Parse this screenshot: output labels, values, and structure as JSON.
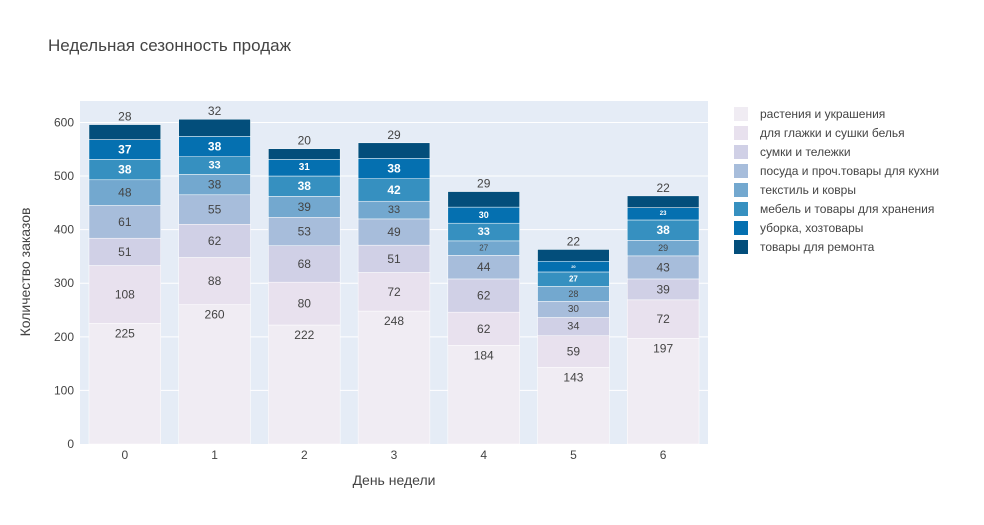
{
  "chart_data": {
    "type": "bar",
    "stacked": true,
    "title": "Недельная сезонность продаж",
    "xlabel": "День недели",
    "ylabel": "Количество заказов",
    "categories": [
      "0",
      "1",
      "2",
      "3",
      "4",
      "5",
      "6"
    ],
    "yticks": [
      "0",
      "100",
      "200",
      "300",
      "400",
      "500",
      "600"
    ],
    "ylim": [
      0,
      640
    ],
    "legend_position": "right",
    "series": [
      {
        "name": "растения и украшения",
        "color": "#f0ecf3",
        "values": [
          225,
          260,
          222,
          248,
          184,
          143,
          197
        ]
      },
      {
        "name": "для глажки и сушки белья",
        "color": "#e8e1ee",
        "values": [
          108,
          88,
          80,
          72,
          62,
          59,
          72
        ]
      },
      {
        "name": "сумки и тележки",
        "color": "#d0d0e6",
        "values": [
          51,
          62,
          68,
          51,
          62,
          34,
          39
        ]
      },
      {
        "name": "посуда и проч.товары для кухни",
        "color": "#a7bddb",
        "values": [
          61,
          55,
          53,
          49,
          44,
          30,
          43
        ]
      },
      {
        "name": "текстиль и ковры",
        "color": "#73a8cf",
        "values": [
          48,
          38,
          39,
          33,
          27,
          28,
          29
        ]
      },
      {
        "name": "мебель и товары для хранения",
        "color": "#3690c0",
        "values": [
          38,
          33,
          38,
          42,
          33,
          27,
          38
        ]
      },
      {
        "name": "уборка, хозтовары",
        "color": "#0570b0",
        "values": [
          37,
          38,
          31,
          38,
          30,
          20,
          23
        ]
      },
      {
        "name": "товары для ремонта",
        "color": "#034e7b",
        "values": [
          28,
          32,
          20,
          29,
          29,
          22,
          22
        ]
      }
    ],
    "seg_labels": [
      [
        "225",
        "260",
        "222",
        "248",
        "184",
        "143",
        "197"
      ],
      [
        "108",
        "88",
        "80",
        "72",
        "62",
        "59",
        "72"
      ],
      [
        "51",
        "62",
        "68",
        "51",
        "62",
        "34",
        "39"
      ],
      [
        "61",
        "55",
        "53",
        "49",
        "44",
        "30",
        "43"
      ],
      [
        "48",
        "38",
        "39",
        "33",
        "27",
        "28",
        "29"
      ],
      [
        "38",
        "33",
        "38",
        "42",
        "33",
        "27",
        "38"
      ],
      [
        "37",
        "38",
        "31",
        "38",
        "30",
        "20",
        "23"
      ],
      [
        "28",
        "32",
        "20",
        "29",
        "29",
        "22",
        "22"
      ]
    ],
    "label_sizes": [
      [
        12,
        12,
        12,
        12,
        12,
        12,
        12
      ],
      [
        12,
        12,
        12,
        12,
        12,
        12,
        12
      ],
      [
        12,
        12,
        12,
        12,
        12,
        11,
        12
      ],
      [
        12,
        12,
        12,
        12,
        12,
        10,
        12
      ],
      [
        12,
        12,
        12,
        11,
        8,
        9,
        9
      ],
      [
        12,
        11,
        12,
        12,
        11,
        8,
        12
      ],
      [
        12,
        12,
        10,
        12,
        9,
        4,
        6
      ],
      [
        12,
        12,
        12,
        12,
        12,
        12,
        12
      ]
    ]
  }
}
